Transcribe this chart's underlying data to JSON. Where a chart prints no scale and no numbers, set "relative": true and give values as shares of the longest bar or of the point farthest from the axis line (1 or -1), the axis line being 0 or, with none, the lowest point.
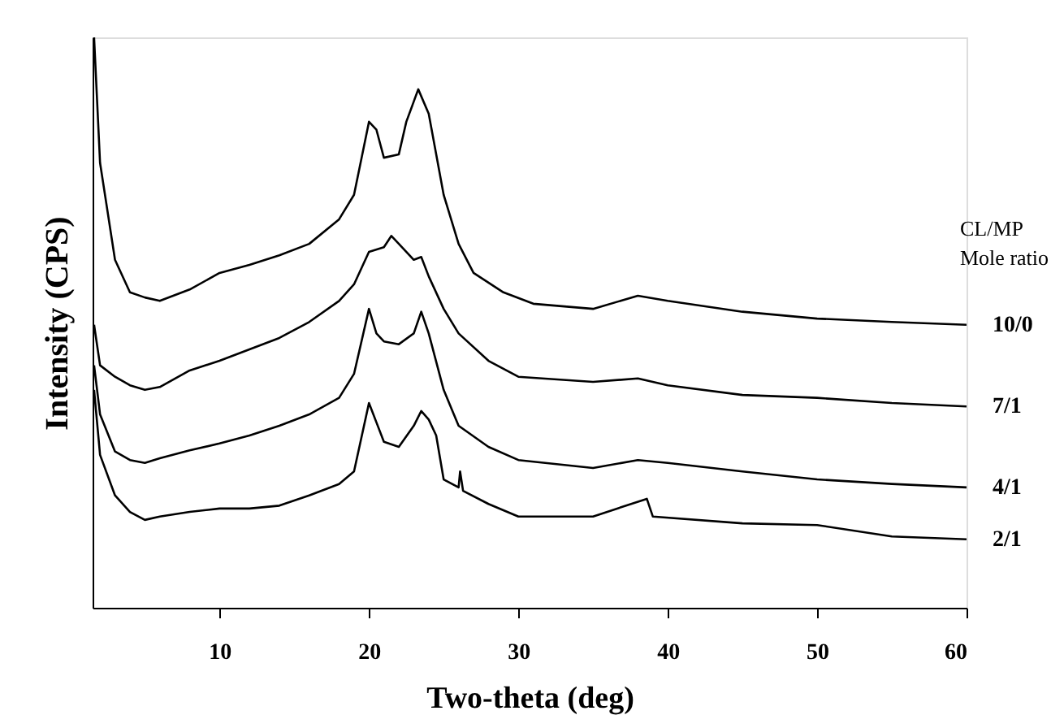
{
  "chart_data": {
    "type": "line",
    "relative": true,
    "xlabel": "Two-theta (deg)",
    "ylabel": "Intensity (CPS)",
    "legend_title": "CL/MP\nMole ratio",
    "xlim": [
      1.5,
      60
    ],
    "xticks": [
      10,
      20,
      30,
      40,
      50,
      60
    ],
    "grid": false,
    "legend": false,
    "marker": "none",
    "line_style": "solid",
    "x": [
      1.6,
      2,
      3,
      4,
      5,
      6,
      8,
      10,
      12,
      14,
      16,
      18,
      19,
      20,
      20.5,
      21,
      22,
      22.5,
      23.3,
      24,
      25,
      26,
      27,
      29,
      31,
      35,
      38,
      40,
      45,
      50,
      55,
      60
    ],
    "series": [
      {
        "name": "10/0",
        "color": "#000000",
        "values": [
          1.0,
          0.78,
          0.61,
          0.553,
          0.544,
          0.538,
          0.558,
          0.587,
          0.601,
          0.618,
          0.638,
          0.681,
          0.724,
          0.852,
          0.838,
          0.789,
          0.795,
          0.852,
          0.909,
          0.866,
          0.724,
          0.638,
          0.587,
          0.553,
          0.533,
          0.524,
          0.547,
          0.538,
          0.519,
          0.507,
          0.501,
          0.496
        ]
      },
      {
        "name": "7/1",
        "color": "#000000",
        "x": [
          1.6,
          2,
          3,
          4,
          5,
          6,
          8,
          10,
          12,
          14,
          16,
          18,
          19,
          20,
          21,
          21.5,
          22,
          23,
          23.5,
          24,
          25,
          26,
          28,
          30,
          35,
          38,
          40,
          45,
          50,
          55,
          60
        ],
        "values": [
          0.496,
          0.425,
          0.405,
          0.39,
          0.382,
          0.387,
          0.416,
          0.433,
          0.453,
          0.473,
          0.501,
          0.538,
          0.567,
          0.624,
          0.632,
          0.652,
          0.638,
          0.61,
          0.615,
          0.581,
          0.524,
          0.481,
          0.433,
          0.405,
          0.396,
          0.402,
          0.39,
          0.373,
          0.368,
          0.359,
          0.353
        ]
      },
      {
        "name": "4/1",
        "color": "#000000",
        "x": [
          1.6,
          2,
          3,
          4,
          5,
          6,
          8,
          10,
          12,
          14,
          16,
          18,
          19,
          20,
          20.5,
          21,
          22,
          23,
          23.5,
          24,
          25,
          26,
          28,
          30,
          35,
          38,
          40,
          45,
          50,
          55,
          60
        ],
        "values": [
          0.425,
          0.339,
          0.274,
          0.259,
          0.254,
          0.262,
          0.276,
          0.288,
          0.302,
          0.319,
          0.339,
          0.368,
          0.41,
          0.524,
          0.481,
          0.467,
          0.462,
          0.481,
          0.519,
          0.481,
          0.382,
          0.319,
          0.282,
          0.259,
          0.245,
          0.259,
          0.254,
          0.239,
          0.225,
          0.217,
          0.211
        ]
      },
      {
        "name": "2/1",
        "color": "#000000",
        "x": [
          1.6,
          2,
          3,
          4,
          5,
          6,
          8,
          10,
          12,
          14,
          16,
          18,
          19,
          20,
          20.5,
          21,
          22,
          23,
          23.5,
          24,
          24.5,
          25,
          26,
          26.1,
          26.3,
          28,
          30,
          35,
          38.6,
          39,
          45,
          50,
          55,
          60
        ],
        "values": [
          0.382,
          0.268,
          0.197,
          0.168,
          0.154,
          0.16,
          0.168,
          0.174,
          0.174,
          0.179,
          0.197,
          0.217,
          0.239,
          0.359,
          0.325,
          0.291,
          0.282,
          0.319,
          0.345,
          0.33,
          0.302,
          0.225,
          0.211,
          0.239,
          0.205,
          0.182,
          0.16,
          0.16,
          0.191,
          0.16,
          0.148,
          0.145,
          0.125,
          0.12
        ]
      }
    ]
  }
}
